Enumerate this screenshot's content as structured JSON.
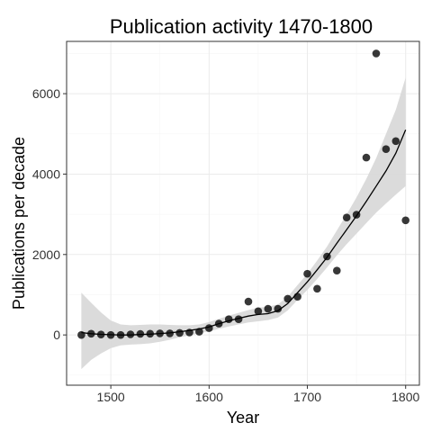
{
  "chart_data": {
    "type": "scatter",
    "title": "Publication activity 1470-1800",
    "xlabel": "Year",
    "ylabel": "Publications per decade",
    "xlim": [
      1455,
      1814
    ],
    "ylim": [
      -1250,
      7300
    ],
    "x_ticks": [
      1500,
      1600,
      1700,
      1800
    ],
    "y_ticks": [
      0,
      2000,
      4000,
      6000
    ],
    "x_tick_labels": [
      "1500",
      "1600",
      "1700",
      "1800"
    ],
    "y_tick_labels": [
      "0",
      "2000",
      "4000",
      "6000"
    ],
    "grid": true,
    "theme": "bw",
    "colors": {
      "points": "#000000",
      "line": "#000000",
      "ribbon": "#d9d9d9",
      "panel_border": "#333333",
      "grid_major": "#ebebeb",
      "grid_minor": "#f5f5f5"
    },
    "points": {
      "x": [
        1470,
        1480,
        1490,
        1500,
        1510,
        1520,
        1530,
        1540,
        1550,
        1560,
        1570,
        1580,
        1590,
        1600,
        1610,
        1620,
        1630,
        1640,
        1650,
        1660,
        1670,
        1680,
        1690,
        1700,
        1710,
        1720,
        1730,
        1740,
        1750,
        1760,
        1770,
        1780,
        1790,
        1800
      ],
      "y": [
        0,
        30,
        10,
        0,
        0,
        15,
        25,
        30,
        40,
        40,
        50,
        60,
        80,
        170,
        280,
        390,
        390,
        830,
        590,
        650,
        650,
        900,
        950,
        1520,
        1150,
        1950,
        1600,
        2920,
        2990,
        4410,
        7000,
        4620,
        4820,
        2850
      ]
    },
    "smooth": {
      "x": [
        1470,
        1480,
        1490,
        1500,
        1510,
        1520,
        1530,
        1540,
        1550,
        1560,
        1570,
        1580,
        1590,
        1600,
        1610,
        1620,
        1630,
        1640,
        1650,
        1660,
        1670,
        1680,
        1690,
        1700,
        1710,
        1720,
        1730,
        1740,
        1750,
        1760,
        1770,
        1780,
        1790,
        1800
      ],
      "y": [
        60,
        30,
        15,
        5,
        0,
        0,
        10,
        20,
        35,
        50,
        80,
        110,
        150,
        200,
        280,
        350,
        410,
        470,
        510,
        530,
        600,
        780,
        1050,
        1320,
        1620,
        1930,
        2280,
        2620,
        2960,
        3320,
        3700,
        4080,
        4520,
        5100
      ],
      "lower": [
        -850,
        -620,
        -460,
        -330,
        -260,
        -240,
        -230,
        -210,
        -170,
        -120,
        -60,
        -10,
        40,
        90,
        150,
        210,
        260,
        310,
        340,
        370,
        430,
        610,
        870,
        1120,
        1390,
        1680,
        1980,
        2260,
        2520,
        2780,
        3040,
        3270,
        3490,
        3700
      ],
      "upper": [
        1050,
        800,
        560,
        360,
        260,
        240,
        250,
        260,
        260,
        250,
        240,
        240,
        260,
        320,
        400,
        480,
        550,
        620,
        680,
        700,
        760,
        950,
        1240,
        1520,
        1850,
        2200,
        2600,
        3000,
        3420,
        3880,
        4400,
        5000,
        5600,
        6400
      ]
    }
  }
}
